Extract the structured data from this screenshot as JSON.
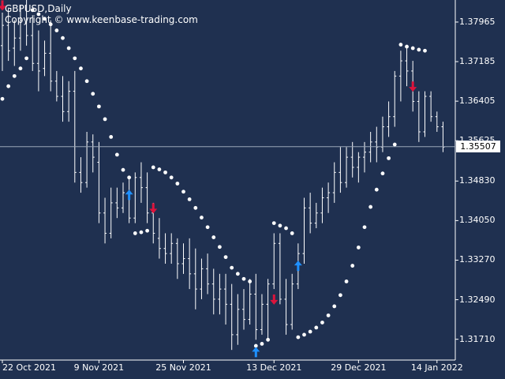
{
  "header": {
    "symbol_timeframe": "GBPUSD,Daily",
    "copyright": "Copyright © www.keenbase-trading.com"
  },
  "colors": {
    "background": "#1f3050",
    "bars": "#ffffff",
    "sar_dots": "#ffffff",
    "buy_arrow": "#1e90ff",
    "sell_arrow": "#dc143c",
    "current_price_line": "#9aa5b8"
  },
  "price_axis": {
    "labels": [
      "1.37965",
      "1.37185",
      "1.36405",
      "1.35625",
      "1.34830",
      "1.34050",
      "1.33270",
      "1.32490",
      "1.31710"
    ],
    "current_price": "1.35507"
  },
  "time_axis": {
    "labels": [
      "22 Oct 2021",
      "9 Nov 2021",
      "25 Nov 2021",
      "13 Dec 2021",
      "29 Dec 2021",
      "14 Jan 2022"
    ]
  },
  "chart_data": {
    "type": "ohlc",
    "symbol": "GBPUSD",
    "timeframe": "Daily",
    "ylim": [
      1.313,
      1.384
    ],
    "x_ticks": [
      "22 Oct 2021",
      "9 Nov 2021",
      "25 Nov 2021",
      "13 Dec 2021",
      "29 Dec 2021",
      "14 Jan 2022"
    ],
    "current_price": 1.35507,
    "bars": [
      [
        1.375,
        1.3815,
        1.37,
        1.379
      ],
      [
        1.379,
        1.3825,
        1.372,
        1.374
      ],
      [
        1.3745,
        1.38,
        1.371,
        1.3765
      ],
      [
        1.3765,
        1.383,
        1.374,
        1.38
      ],
      [
        1.3795,
        1.384,
        1.375,
        1.377
      ],
      [
        1.377,
        1.381,
        1.37,
        1.3715
      ],
      [
        1.3715,
        1.378,
        1.366,
        1.37
      ],
      [
        1.3705,
        1.376,
        1.369,
        1.3735
      ],
      [
        1.3735,
        1.38,
        1.366,
        1.368
      ],
      [
        1.368,
        1.37,
        1.364,
        1.365
      ],
      [
        1.365,
        1.369,
        1.36,
        1.362
      ],
      [
        1.362,
        1.368,
        1.36,
        1.366
      ],
      [
        1.366,
        1.37,
        1.348,
        1.35
      ],
      [
        1.35,
        1.353,
        1.346,
        1.348
      ],
      [
        1.348,
        1.358,
        1.347,
        1.356
      ],
      [
        1.356,
        1.3575,
        1.35,
        1.353
      ],
      [
        1.352,
        1.356,
        1.34,
        1.342
      ],
      [
        1.342,
        1.345,
        1.336,
        1.338
      ],
      [
        1.338,
        1.347,
        1.337,
        1.344
      ],
      [
        1.344,
        1.347,
        1.341,
        1.343
      ],
      [
        1.343,
        1.348,
        1.342,
        1.346
      ],
      [
        1.346,
        1.349,
        1.34,
        1.341
      ],
      [
        1.341,
        1.35,
        1.34,
        1.349
      ],
      [
        1.349,
        1.352,
        1.344,
        1.347
      ],
      [
        1.347,
        1.35,
        1.34,
        1.342
      ],
      [
        1.342,
        1.344,
        1.336,
        1.338
      ],
      [
        1.337,
        1.341,
        1.333,
        1.335
      ],
      [
        1.335,
        1.338,
        1.332,
        1.334
      ],
      [
        1.334,
        1.338,
        1.332,
        1.336
      ],
      [
        1.336,
        1.337,
        1.329,
        1.332
      ],
      [
        1.332,
        1.336,
        1.33,
        1.333
      ],
      [
        1.333,
        1.337,
        1.327,
        1.33
      ],
      [
        1.33,
        1.335,
        1.323,
        1.327
      ],
      [
        1.327,
        1.333,
        1.325,
        1.331
      ],
      [
        1.331,
        1.334,
        1.326,
        1.328
      ],
      [
        1.328,
        1.331,
        1.322,
        1.325
      ],
      [
        1.325,
        1.33,
        1.322,
        1.327
      ],
      [
        1.327,
        1.33,
        1.32,
        1.324
      ],
      [
        1.324,
        1.328,
        1.315,
        1.318
      ],
      [
        1.318,
        1.326,
        1.316,
        1.323
      ],
      [
        1.323,
        1.327,
        1.319,
        1.321
      ],
      [
        1.321,
        1.329,
        1.32,
        1.326
      ],
      [
        1.326,
        1.33,
        1.317,
        1.319
      ],
      [
        1.319,
        1.326,
        1.318,
        1.324
      ],
      [
        1.324,
        1.329,
        1.317,
        1.328
      ],
      [
        1.328,
        1.338,
        1.327,
        1.336
      ],
      [
        1.336,
        1.338,
        1.324,
        1.325
      ],
      [
        1.325,
        1.329,
        1.318,
        1.32
      ],
      [
        1.32,
        1.33,
        1.319,
        1.328
      ],
      [
        1.328,
        1.336,
        1.327,
        1.334
      ],
      [
        1.334,
        1.345,
        1.332,
        1.343
      ],
      [
        1.343,
        1.346,
        1.338,
        1.34
      ],
      [
        1.34,
        1.344,
        1.339,
        1.342
      ],
      [
        1.342,
        1.347,
        1.34,
        1.345
      ],
      [
        1.345,
        1.348,
        1.342,
        1.346
      ],
      [
        1.346,
        1.352,
        1.344,
        1.35
      ],
      [
        1.35,
        1.355,
        1.346,
        1.348
      ],
      [
        1.348,
        1.355,
        1.347,
        1.353
      ],
      [
        1.353,
        1.356,
        1.349,
        1.351
      ],
      [
        1.351,
        1.354,
        1.348,
        1.353
      ],
      [
        1.353,
        1.356,
        1.35,
        1.354
      ],
      [
        1.354,
        1.358,
        1.352,
        1.356
      ],
      [
        1.356,
        1.359,
        1.352,
        1.355
      ],
      [
        1.355,
        1.361,
        1.354,
        1.359
      ],
      [
        1.359,
        1.364,
        1.357,
        1.361
      ],
      [
        1.361,
        1.37,
        1.359,
        1.369
      ],
      [
        1.369,
        1.374,
        1.364,
        1.372
      ],
      [
        1.372,
        1.375,
        1.367,
        1.37
      ],
      [
        1.37,
        1.372,
        1.362,
        1.364
      ],
      [
        1.364,
        1.366,
        1.356,
        1.358
      ],
      [
        1.358,
        1.366,
        1.357,
        1.365
      ],
      [
        1.365,
        1.366,
        1.36,
        1.361
      ],
      [
        1.361,
        1.362,
        1.358,
        1.359
      ],
      [
        1.359,
        1.36,
        1.354,
        1.355
      ]
    ],
    "sar": [
      {
        "i": 0,
        "v": 1.3645
      },
      {
        "i": 1,
        "v": 1.367
      },
      {
        "i": 2,
        "v": 1.369
      },
      {
        "i": 3,
        "v": 1.3705
      },
      {
        "i": 4,
        "v": 1.3725
      },
      {
        "i": 5,
        "v": 1.382
      },
      {
        "i": 6,
        "v": 1.3812
      },
      {
        "i": 7,
        "v": 1.3803
      },
      {
        "i": 8,
        "v": 1.3792
      },
      {
        "i": 9,
        "v": 1.378
      },
      {
        "i": 10,
        "v": 1.3765
      },
      {
        "i": 11,
        "v": 1.3745
      },
      {
        "i": 12,
        "v": 1.3725
      },
      {
        "i": 13,
        "v": 1.3705
      },
      {
        "i": 14,
        "v": 1.368
      },
      {
        "i": 15,
        "v": 1.3655
      },
      {
        "i": 16,
        "v": 1.363
      },
      {
        "i": 17,
        "v": 1.3605
      },
      {
        "i": 18,
        "v": 1.357
      },
      {
        "i": 19,
        "v": 1.3535
      },
      {
        "i": 20,
        "v": 1.3505
      },
      {
        "i": 21,
        "v": 1.349
      },
      {
        "i": 22,
        "v": 1.338
      },
      {
        "i": 23,
        "v": 1.3382
      },
      {
        "i": 24,
        "v": 1.3385
      },
      {
        "i": 25,
        "v": 1.351
      },
      {
        "i": 26,
        "v": 1.3506
      },
      {
        "i": 27,
        "v": 1.35
      },
      {
        "i": 28,
        "v": 1.349
      },
      {
        "i": 29,
        "v": 1.3478
      },
      {
        "i": 30,
        "v": 1.3462
      },
      {
        "i": 31,
        "v": 1.3447
      },
      {
        "i": 32,
        "v": 1.343
      },
      {
        "i": 33,
        "v": 1.3411
      },
      {
        "i": 34,
        "v": 1.3392
      },
      {
        "i": 35,
        "v": 1.3372
      },
      {
        "i": 36,
        "v": 1.3353
      },
      {
        "i": 37,
        "v": 1.3333
      },
      {
        "i": 38,
        "v": 1.3312
      },
      {
        "i": 39,
        "v": 1.33
      },
      {
        "i": 40,
        "v": 1.329
      },
      {
        "i": 41,
        "v": 1.3285
      },
      {
        "i": 42,
        "v": 1.3158
      },
      {
        "i": 43,
        "v": 1.3162
      },
      {
        "i": 44,
        "v": 1.317
      },
      {
        "i": 45,
        "v": 1.34
      },
      {
        "i": 46,
        "v": 1.3395
      },
      {
        "i": 47,
        "v": 1.339
      },
      {
        "i": 48,
        "v": 1.338
      },
      {
        "i": 49,
        "v": 1.3175
      },
      {
        "i": 50,
        "v": 1.318
      },
      {
        "i": 51,
        "v": 1.3186
      },
      {
        "i": 52,
        "v": 1.3194
      },
      {
        "i": 53,
        "v": 1.3204
      },
      {
        "i": 54,
        "v": 1.3218
      },
      {
        "i": 55,
        "v": 1.3236
      },
      {
        "i": 56,
        "v": 1.3258
      },
      {
        "i": 57,
        "v": 1.3285
      },
      {
        "i": 58,
        "v": 1.3316
      },
      {
        "i": 59,
        "v": 1.3352
      },
      {
        "i": 60,
        "v": 1.3392
      },
      {
        "i": 61,
        "v": 1.3432
      },
      {
        "i": 62,
        "v": 1.3466
      },
      {
        "i": 63,
        "v": 1.3498
      },
      {
        "i": 64,
        "v": 1.3528
      },
      {
        "i": 65,
        "v": 1.3555
      },
      {
        "i": 66,
        "v": 1.3752
      },
      {
        "i": 67,
        "v": 1.3748
      },
      {
        "i": 68,
        "v": 1.3745
      },
      {
        "i": 69,
        "v": 1.3742
      },
      {
        "i": 70,
        "v": 1.374
      }
    ],
    "signals": [
      {
        "i": 0,
        "type": "sell",
        "v": 1.383
      },
      {
        "i": 21,
        "type": "buy",
        "v": 1.3455
      },
      {
        "i": 25,
        "type": "sell",
        "v": 1.343
      },
      {
        "i": 42,
        "type": "buy",
        "v": 1.3145
      },
      {
        "i": 45,
        "type": "sell",
        "v": 1.325
      },
      {
        "i": 49,
        "type": "buy",
        "v": 1.3315
      },
      {
        "i": 68,
        "type": "sell",
        "v": 1.367
      }
    ]
  }
}
